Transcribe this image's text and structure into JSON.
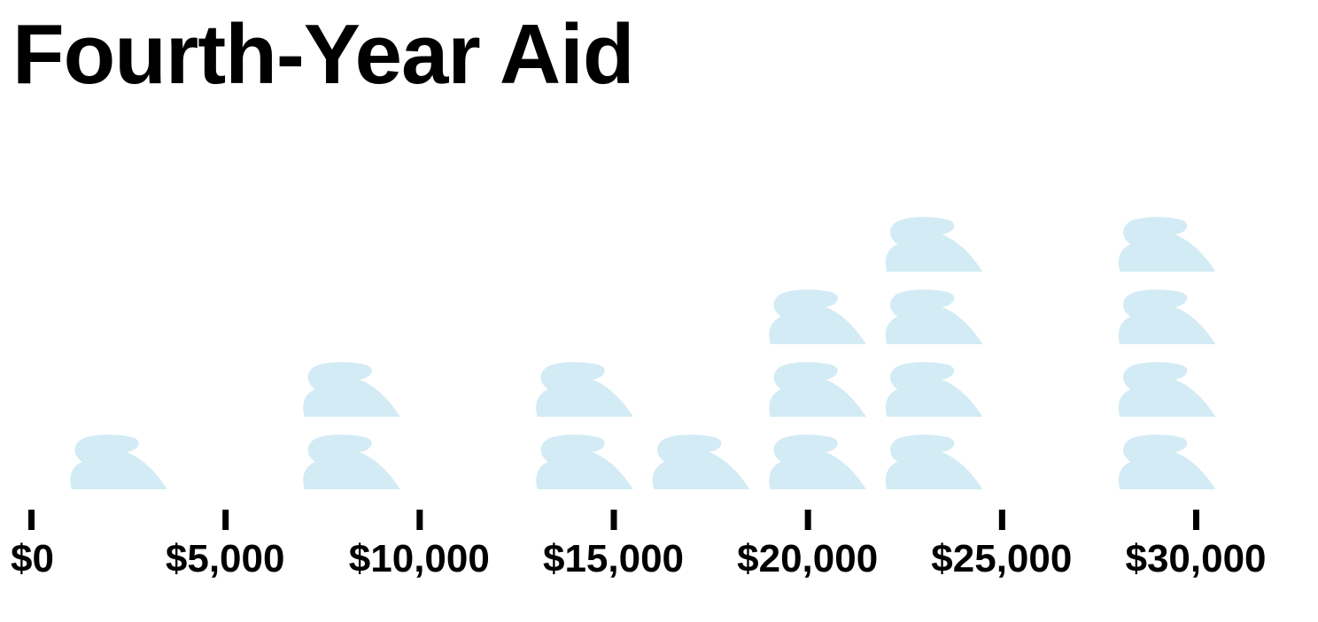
{
  "title": "Fourth-Year Aid",
  "chart_data": {
    "type": "scatter",
    "style": "unit pictograph (stacked icons, one per recipient)",
    "title": "Fourth-Year Aid",
    "xlabel": "",
    "ylabel": "",
    "xlim": [
      0,
      30000
    ],
    "x_ticks": [
      0,
      5000,
      10000,
      15000,
      20000,
      25000,
      30000
    ],
    "x_tick_labels": [
      "$0",
      "$5,000",
      "$10,000",
      "$15,000",
      "$20,000",
      "$25,000",
      "$30,000"
    ],
    "grid": false,
    "legend": "none",
    "icon_color": "#d3ebf4",
    "stacks": [
      {
        "x": 2500,
        "count": 1
      },
      {
        "x": 8500,
        "count": 2
      },
      {
        "x": 14500,
        "count": 2
      },
      {
        "x": 17500,
        "count": 1
      },
      {
        "x": 20500,
        "count": 3
      },
      {
        "x": 23500,
        "count": 4
      },
      {
        "x": 29500,
        "count": 4
      }
    ]
  }
}
